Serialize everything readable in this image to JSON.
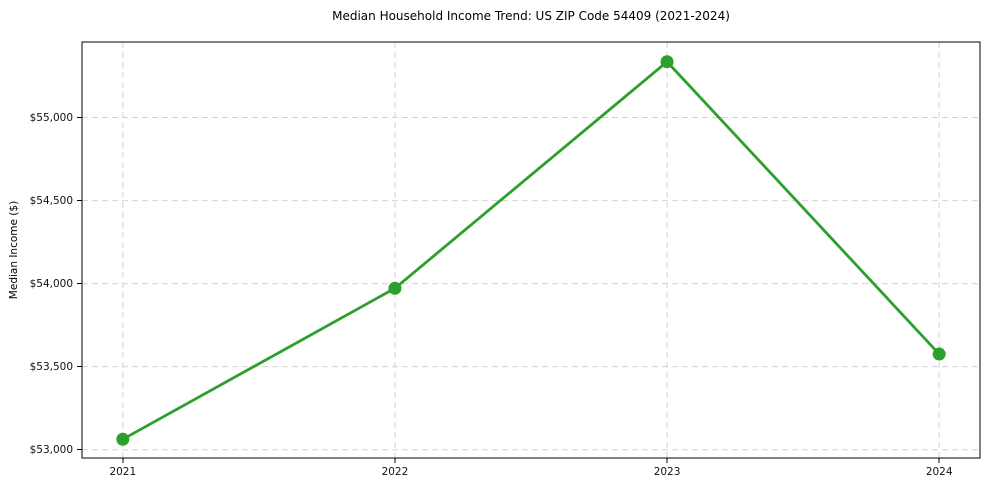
{
  "chart_data": {
    "type": "line",
    "title": "Median Household Income Trend: US ZIP Code 54409 (2021-2024)",
    "xlabel": "",
    "ylabel": "Median Income ($)",
    "x": [
      2021,
      2022,
      2023,
      2024
    ],
    "values": [
      53063,
      53972,
      55336,
      53576
    ],
    "x_tick_labels": [
      "2021",
      "2022",
      "2023",
      "2024"
    ],
    "y_ticks": [
      53000,
      53500,
      54000,
      54500,
      55000
    ],
    "y_tick_labels": [
      "$53,000",
      "$53,500",
      "$54,000",
      "$54,500",
      "$55,000"
    ],
    "xlim": [
      2020.85,
      2024.15
    ],
    "ylim": [
      52950,
      55455
    ],
    "grid": true,
    "grid_style": "dashed",
    "legend": false,
    "colors": {
      "line": "#2ca02c",
      "marker": "#2ca02c",
      "grid": "#d3d3d3",
      "spine": "#000000",
      "text": "#111111",
      "background": "#ffffff"
    }
  }
}
